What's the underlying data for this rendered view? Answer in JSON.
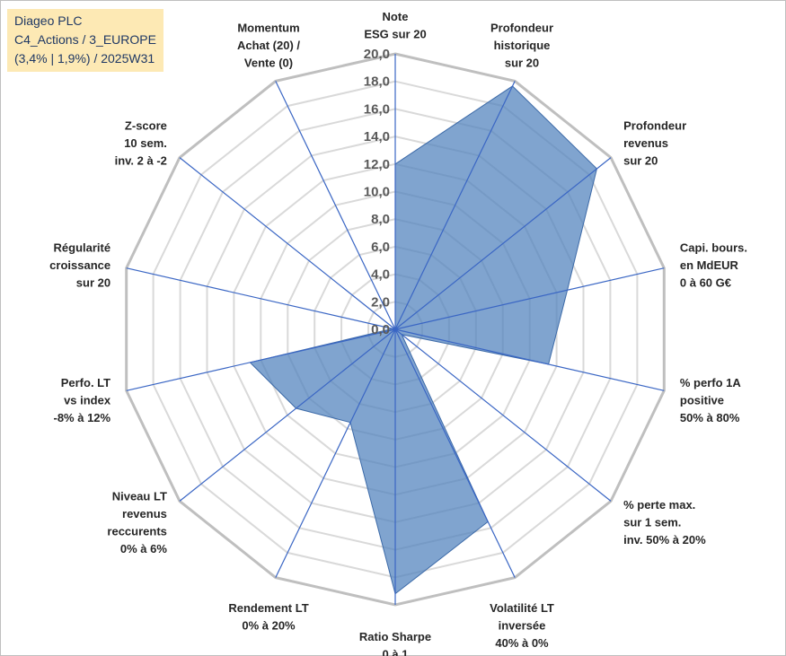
{
  "title": {
    "line1": "Diageo PLC",
    "line2": "C4_Actions / 3_EUROPE",
    "line3": "(3,4% | 1,9%) / 2025W31"
  },
  "chart_data": {
    "type": "radar",
    "rmin": 0,
    "rmax": 20,
    "tick_step": 2,
    "tick_labels": [
      "0,0",
      "2,0",
      "4,0",
      "6,0",
      "8,0",
      "10,0",
      "12,0",
      "14,0",
      "16,0",
      "18,0",
      "20,0"
    ],
    "grid": true,
    "categories": [
      [
        "Note",
        "ESG sur 20"
      ],
      [
        "Profondeur",
        "historique",
        "sur 20"
      ],
      [
        "Profondeur",
        "revenus",
        "sur 20"
      ],
      [
        "Capi. bours.",
        "en MdEUR",
        "0 à 60 G€"
      ],
      [
        "% perfo 1A",
        "positive",
        "50% à 80%"
      ],
      [
        "% perte max.",
        "sur 1 sem.",
        "inv. 50% à 20%"
      ],
      [
        "Volatilité LT",
        "inversée",
        "40% à 0%"
      ],
      [
        "Ratio Sharpe",
        "0 à 1"
      ],
      [
        "Rendement LT",
        "0% à 20%"
      ],
      [
        "Niveau LT",
        "revenus",
        "reccurents",
        "0% à 6%"
      ],
      [
        "Perfo. LT",
        "vs index",
        "-8% à 12%"
      ],
      [
        "Régularité",
        "croissance",
        "sur 20"
      ],
      [
        "Z-score",
        "10 sem.",
        "inv. 2 à -2"
      ],
      [
        "Momentum",
        "Achat (20) /",
        "Vente (0)"
      ]
    ],
    "series": [
      {
        "values": [
          12.0,
          19.6,
          18.7,
          12.8,
          11.4,
          0.6,
          15.5,
          19.2,
          7.5,
          9.2,
          10.8,
          0.2,
          0.0,
          0.0
        ],
        "color": "#4f81bd"
      }
    ]
  }
}
